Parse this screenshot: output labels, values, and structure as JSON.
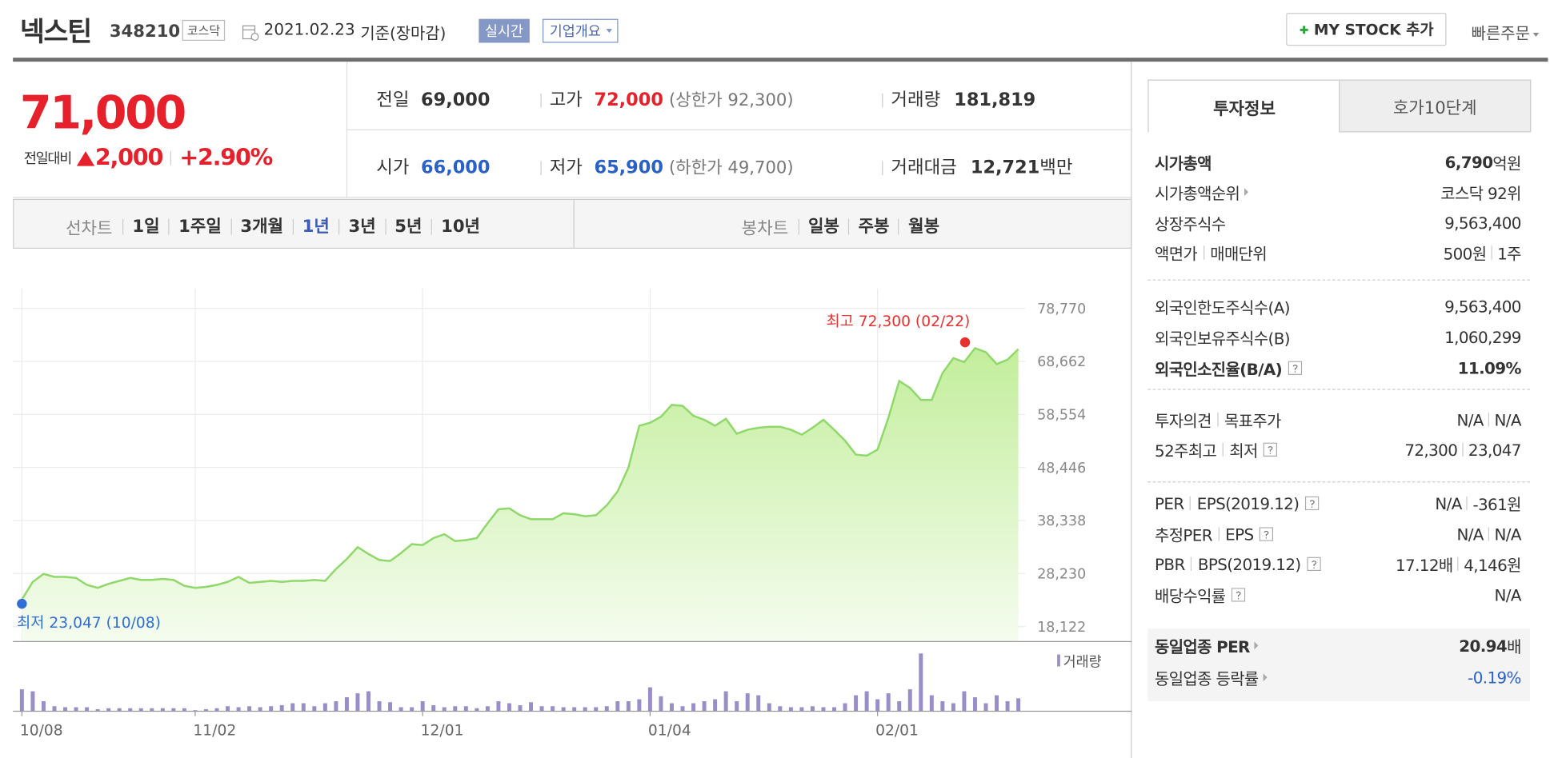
{
  "header": {
    "name": "넥스틴",
    "code": "348210",
    "market": "코스닥",
    "date": "2021.02.23",
    "basis": "기준(장마감)",
    "realtime": "실시간",
    "company": "기업개요",
    "mystock": "MY STOCK 추가",
    "quick_order": "빠른주문"
  },
  "quote": {
    "price": "71,000",
    "change_label": "전일대비",
    "change": "2,000",
    "rate": "+2.90%",
    "stats": {
      "prev": {
        "label": "전일",
        "value": "69,000"
      },
      "high": {
        "label": "고가",
        "value": "72,000",
        "limit": "(상한가 92,300)"
      },
      "volume": {
        "label": "거래량",
        "value": "181,819"
      },
      "open": {
        "label": "시가",
        "value": "66,000"
      },
      "low": {
        "label": "저가",
        "value": "65,900",
        "limit": "(하한가 49,700)"
      },
      "amount": {
        "label": "거래대금",
        "value": "12,721",
        "unit": "백만"
      }
    }
  },
  "period_tabs": {
    "line_label": "선차트",
    "line": [
      "1일",
      "1주일",
      "3개월",
      "1년",
      "3년",
      "5년",
      "10년"
    ],
    "candle_label": "봉차트",
    "candle": [
      "일봉",
      "주봉",
      "월봉"
    ]
  },
  "info": {
    "tabs": [
      "투자정보",
      "호가10단계"
    ],
    "rows": [
      {
        "labels": [
          "시가총액"
        ],
        "values": [
          "6,790"
        ],
        "unit": "억원"
      },
      {
        "labels": [
          "시가총액순위"
        ],
        "values": [
          "코스닥 92위"
        ]
      },
      {
        "labels": [
          "상장주식수"
        ],
        "values": [
          "9,563,400"
        ]
      },
      {
        "labels": [
          "액면가",
          "매매단위"
        ],
        "values": [
          "500원",
          "1주"
        ]
      },
      {
        "labels": [
          "외국인한도주식수(A)"
        ],
        "values": [
          "9,563,400"
        ]
      },
      {
        "labels": [
          "외국인보유주식수(B)"
        ],
        "values": [
          "1,060,299"
        ]
      },
      {
        "labels": [
          "외국인소진율(B/A)"
        ],
        "values": [
          "11.09%"
        ]
      },
      {
        "labels": [
          "투자의견",
          "목표주가"
        ],
        "values": [
          "N/A",
          "N/A"
        ]
      },
      {
        "labels": [
          "52주최고",
          "최저"
        ],
        "values": [
          "72,300",
          "23,047"
        ]
      },
      {
        "labels": [
          "PER",
          "EPS(2019.12)"
        ],
        "values": [
          "N/A",
          "-361원"
        ]
      },
      {
        "labels": [
          "추정PER",
          "EPS"
        ],
        "values": [
          "N/A",
          "N/A"
        ]
      },
      {
        "labels": [
          "PBR",
          "BPS(2019.12)"
        ],
        "values": [
          "17.12배",
          "4,146원"
        ]
      },
      {
        "labels": [
          "배당수익률"
        ],
        "values": [
          "N/A"
        ]
      },
      {
        "labels": [
          "동일업종 PER"
        ],
        "values": [
          "20.94"
        ],
        "unit": "배"
      },
      {
        "labels": [
          "동일업종 등락률"
        ],
        "values": [
          "-0.19%"
        ]
      }
    ]
  },
  "chart_data": {
    "type": "line",
    "categories": [
      "10/08",
      null,
      null,
      null,
      null,
      null,
      null,
      null,
      null,
      null,
      null,
      null,
      null,
      null,
      null,
      null,
      "11/02",
      null,
      null,
      null,
      null,
      null,
      null,
      null,
      null,
      null,
      null,
      null,
      null,
      null,
      null,
      null,
      null,
      null,
      null,
      null,
      null,
      "12/01",
      null,
      null,
      null,
      null,
      null,
      null,
      null,
      null,
      null,
      null,
      null,
      null,
      null,
      null,
      null,
      null,
      null,
      null,
      null,
      null,
      "01/04",
      null,
      null,
      null,
      null,
      null,
      null,
      null,
      null,
      null,
      null,
      null,
      null,
      null,
      null,
      null,
      null,
      null,
      null,
      null,
      null,
      "02/01",
      null,
      null,
      null,
      null,
      null,
      null,
      null,
      null,
      null,
      null,
      null,
      null,
      null
    ],
    "series": [
      {
        "color": "#8fd86a",
        "values": [
          23300,
          26650,
          28170,
          27600,
          27600,
          27400,
          26080,
          25510,
          26270,
          26840,
          27400,
          27030,
          27030,
          27220,
          27030,
          25890,
          25510,
          25700,
          26080,
          26650,
          27600,
          26460,
          26650,
          26840,
          26650,
          26840,
          26840,
          27030,
          26840,
          29110,
          31010,
          33280,
          31960,
          30820,
          30630,
          32140,
          33850,
          33660,
          34990,
          35740,
          34420,
          34610,
          34990,
          37830,
          40480,
          40670,
          39350,
          38590,
          38590,
          38590,
          39720,
          39540,
          39160,
          39350,
          41240,
          43890,
          48440,
          56400,
          56970,
          58110,
          60380,
          60190,
          58300,
          57540,
          56400,
          57730,
          54880,
          55640,
          56020,
          56210,
          56210,
          55640,
          54700,
          56020,
          57540,
          55640,
          53560,
          50900,
          50710,
          51850,
          57920,
          64930,
          63600,
          61330,
          61330,
          66440,
          69290,
          68530,
          71180,
          70420,
          68150,
          69000,
          71000
        ]
      },
      {
        "name": "거래량",
        "axis": "y2",
        "color": "#9a8ec8",
        "values": [
          308000,
          280000,
          140000,
          70000,
          56000,
          56000,
          56000,
          28000,
          42000,
          42000,
          42000,
          42000,
          42000,
          42000,
          42000,
          42000,
          14000,
          28000,
          42000,
          70000,
          56000,
          70000,
          56000,
          70000,
          84000,
          112000,
          112000,
          70000,
          112000,
          140000,
          196000,
          252000,
          280000,
          140000,
          126000,
          56000,
          56000,
          140000,
          84000,
          56000,
          70000,
          70000,
          42000,
          70000,
          140000,
          112000,
          84000,
          126000,
          70000,
          70000,
          56000,
          56000,
          56000,
          56000,
          70000,
          140000,
          140000,
          168000,
          336000,
          210000,
          112000,
          70000,
          112000,
          140000,
          168000,
          280000,
          140000,
          252000,
          224000,
          112000,
          70000,
          56000,
          56000,
          70000,
          56000,
          56000,
          112000,
          224000,
          280000,
          168000,
          252000,
          140000,
          308000,
          812000,
          224000,
          140000,
          112000,
          280000,
          196000,
          112000,
          224000,
          140000,
          181819
        ]
      }
    ],
    "ylim": [
      18122,
      78770
    ],
    "yticks": [
      {
        "value": 18122,
        "label": "18,122"
      },
      {
        "value": 28230,
        "label": "28,230"
      },
      {
        "value": 38338,
        "label": "38,338"
      },
      {
        "value": 48446,
        "label": "48,446"
      },
      {
        "value": 58554,
        "label": "58,554"
      },
      {
        "value": 68662,
        "label": "68,662"
      },
      {
        "value": 78770,
        "label": "78,770"
      }
    ],
    "y2lim": [
      0,
      980000
    ],
    "grid": true,
    "high": {
      "label": "최고 72,300 (02/22)",
      "value": 72300,
      "color": "#e8302f"
    },
    "low": {
      "label": "최저 23,047 (10/08)",
      "value": 23047,
      "color": "#2f6fd6"
    }
  }
}
